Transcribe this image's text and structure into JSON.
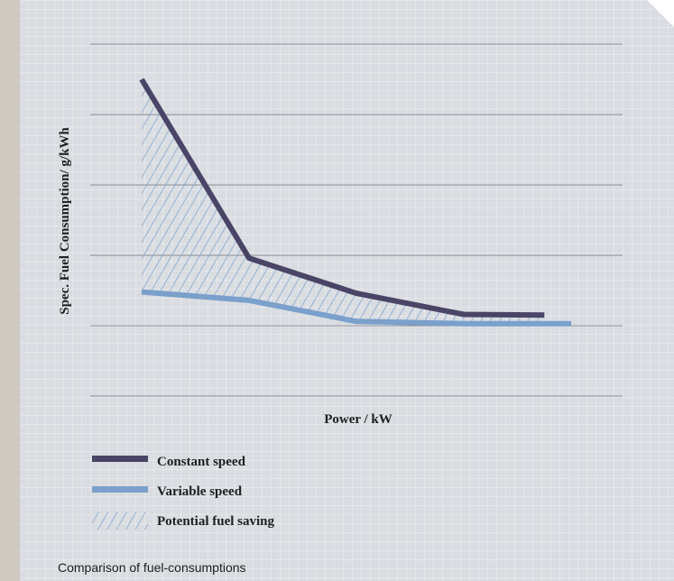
{
  "chart_data": {
    "type": "line",
    "title": "",
    "xlabel": "Power / kW",
    "ylabel": "Spec. Fuel Consumption/ g/kWh",
    "x_ticks_labeled": false,
    "y_ticks_labeled": false,
    "ylim": [
      0,
      5
    ],
    "grid": "horizontal",
    "legend_position": "bottom-left",
    "series": [
      {
        "name": "Constant speed",
        "color": "#4a4566",
        "x": [
          0,
          1,
          2,
          3,
          3.75
        ],
        "y": [
          4.5,
          1.96,
          1.46,
          1.16,
          1.15
        ]
      },
      {
        "name": "Variable speed",
        "color": "#7aa0cb",
        "x": [
          0,
          1,
          2,
          3,
          4
        ],
        "y": [
          1.48,
          1.36,
          1.06,
          1.03,
          1.03
        ]
      }
    ],
    "fill_between": {
      "name": "Potential fuel saving",
      "pattern": "diagonal-hatch",
      "color": "#7aa0cb",
      "between": [
        "Constant speed",
        "Variable speed"
      ]
    }
  },
  "caption": "Comparison of fuel-consumptions",
  "colors": {
    "panel_background": "#d9dce1",
    "paper_grid": "#f3f4f6",
    "gridline": "#8a8f96",
    "side_strip": "#cfc9c2",
    "text": "#1e1e1e"
  }
}
